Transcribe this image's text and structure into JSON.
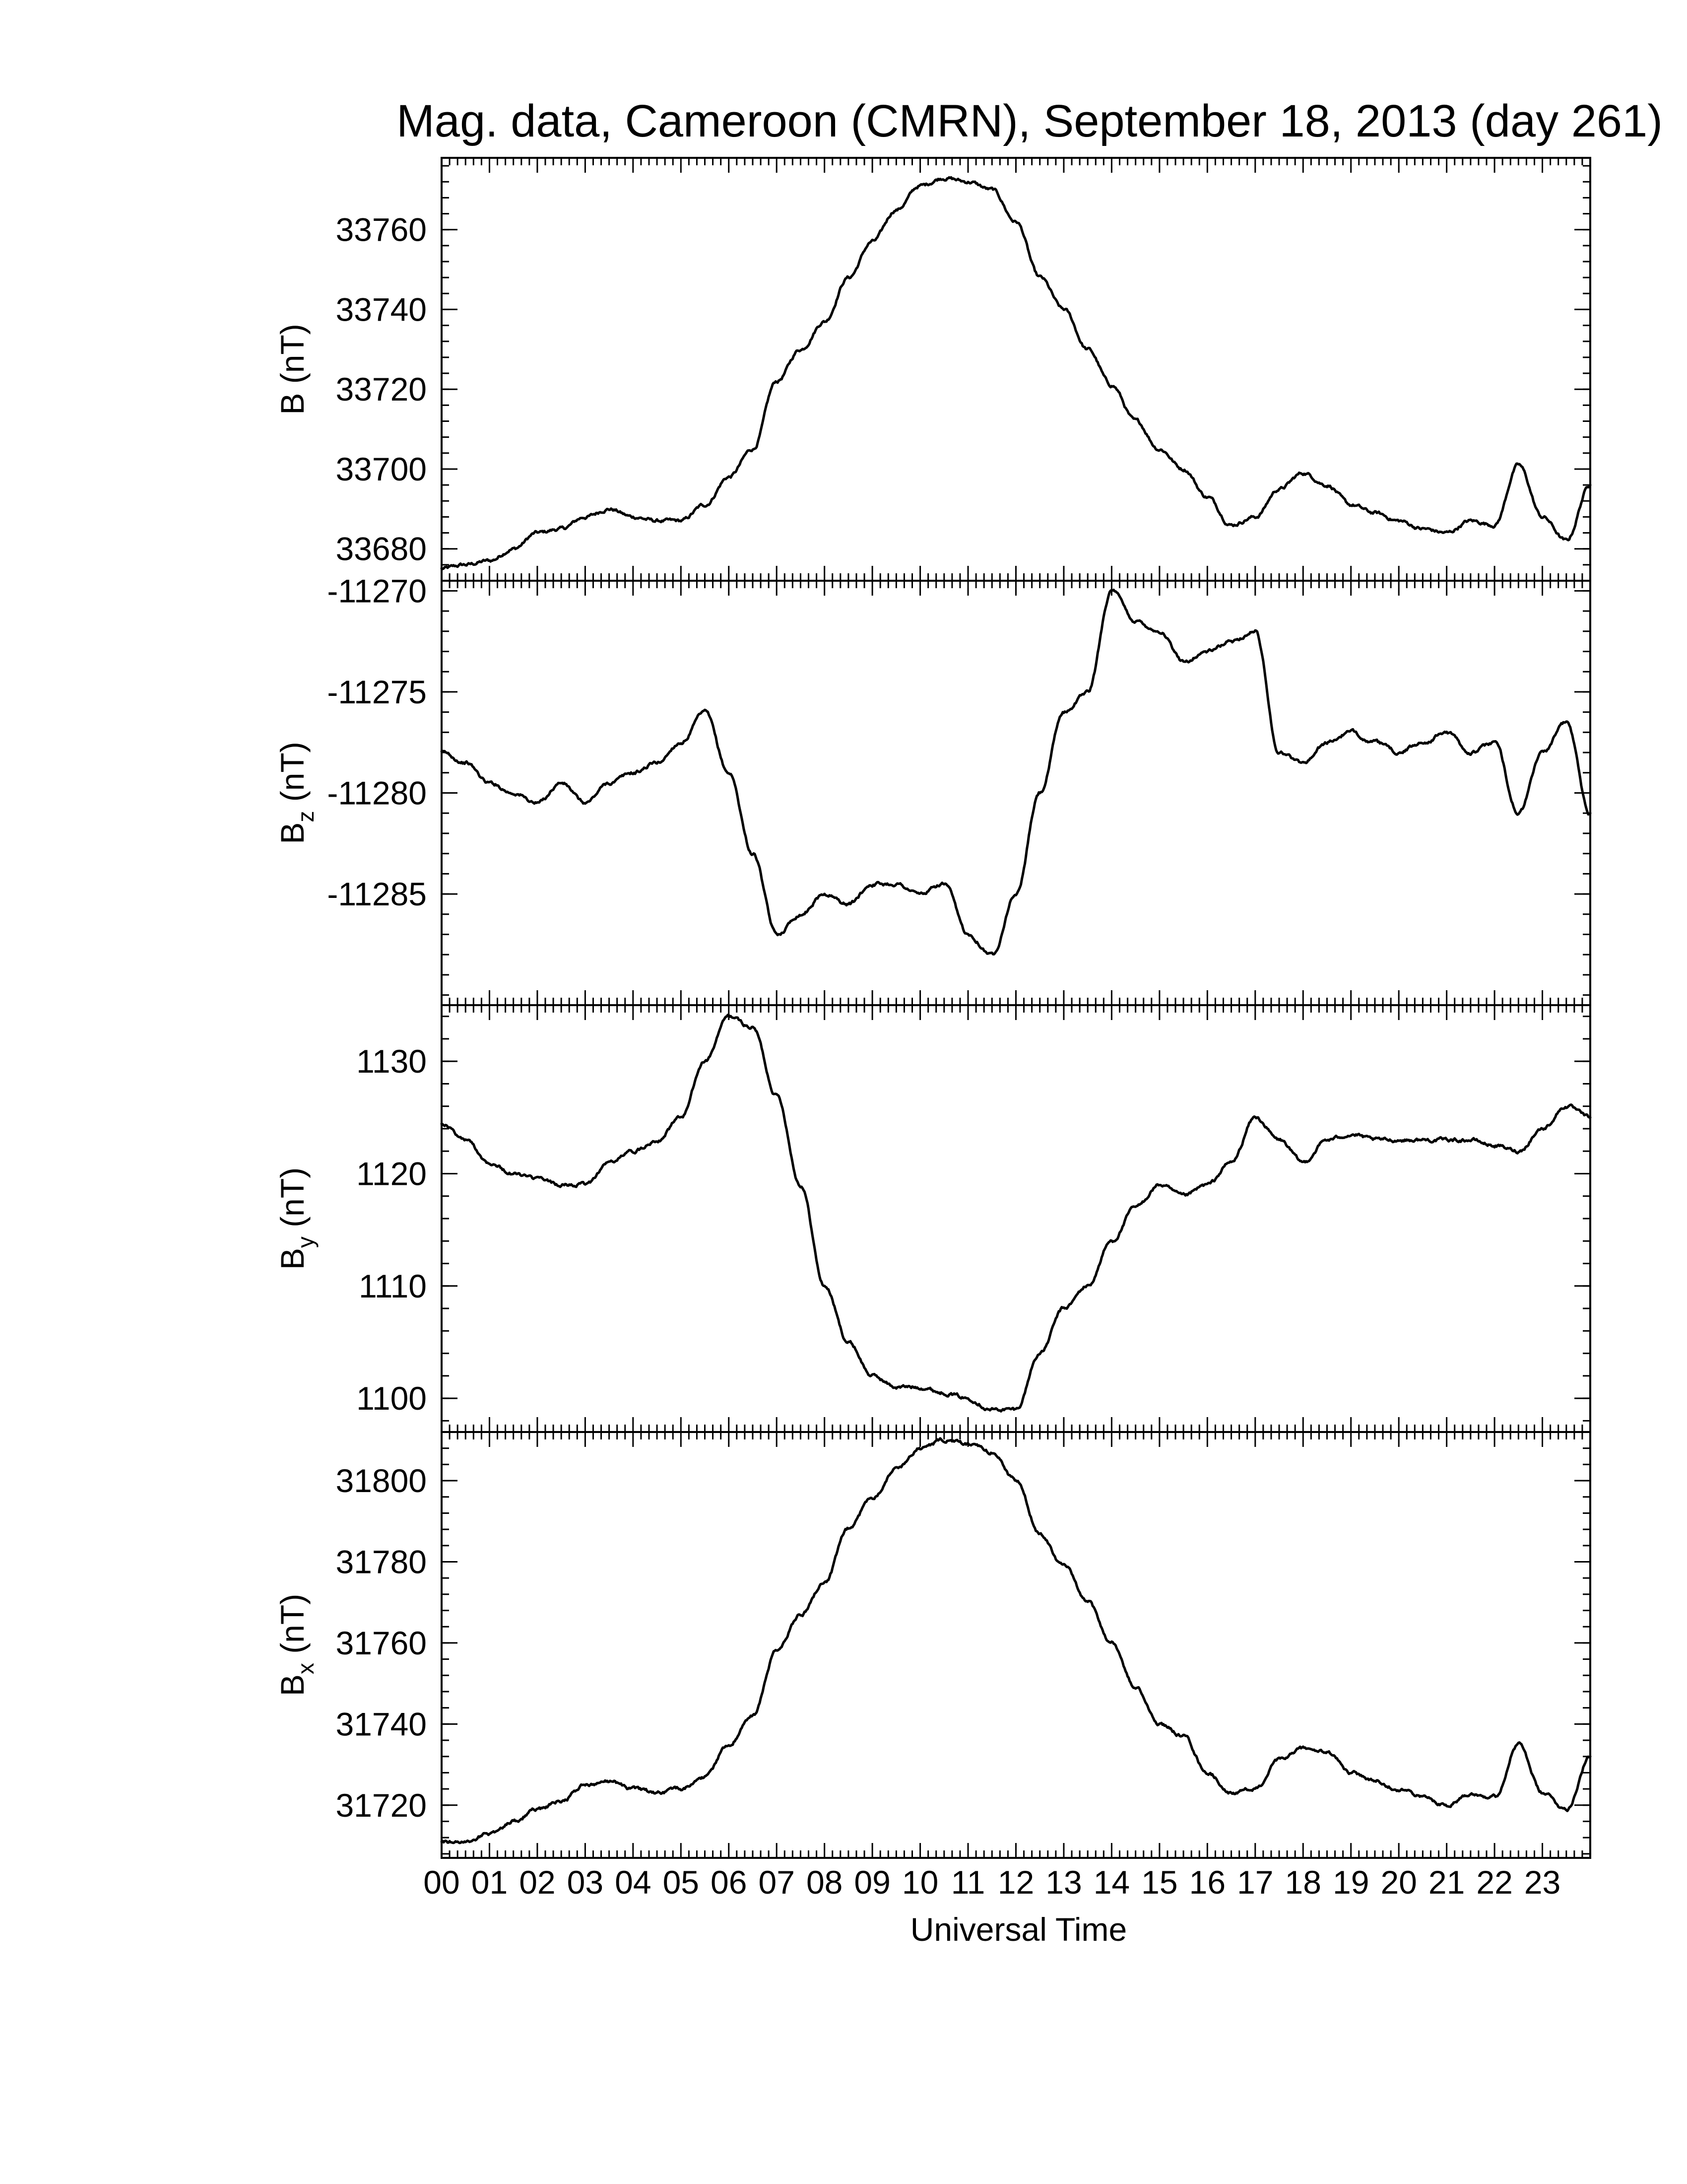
{
  "chart_data": {
    "type": "line",
    "title": "Mag. data, Cameroon (CMRN), September 18, 2013 (day 261)",
    "xlabel": "Universal Time",
    "xlim": [
      0,
      24
    ],
    "x_tick_labels": [
      "00",
      "01",
      "02",
      "03",
      "04",
      "05",
      "06",
      "07",
      "08",
      "09",
      "10",
      "11",
      "12",
      "13",
      "14",
      "15",
      "16",
      "17",
      "18",
      "19",
      "20",
      "21",
      "22",
      "23"
    ],
    "grid": false,
    "panels": [
      {
        "name": "B",
        "ylabel": "B (nT)",
        "ylabel_main": "B",
        "ylabel_sub": "",
        "ylabel_unit": " (nT)",
        "ylim": [
          33672,
          33778
        ],
        "yticks": [
          33680,
          33700,
          33720,
          33740,
          33760
        ],
        "ytick_labels": [
          "33680",
          "33700",
          "33720",
          "33740",
          "33760"
        ],
        "minor_step": 4,
        "x": [
          0,
          0.5,
          1,
          1.5,
          2,
          2.5,
          3,
          3.5,
          4,
          4.5,
          5,
          5.5,
          6,
          6.5,
          7,
          7.5,
          8,
          8.5,
          9,
          9.5,
          10,
          10.5,
          11,
          11.5,
          12,
          12.5,
          13,
          13.5,
          14,
          14.5,
          15,
          15.5,
          16,
          16.5,
          17,
          17.5,
          18,
          18.5,
          19,
          19.5,
          20,
          20.5,
          21,
          21.5,
          22,
          22.5,
          23,
          23.5,
          24
        ],
        "values": [
          33675,
          33676,
          33677,
          33680,
          33684,
          33685,
          33688,
          33690,
          33688,
          33687,
          33687,
          33691,
          33698,
          33705,
          33722,
          33730,
          33737,
          33748,
          33757,
          33765,
          33771,
          33773,
          33772,
          33770,
          33762,
          33748,
          33740,
          33730,
          33721,
          33712,
          33705,
          33700,
          33693,
          33686,
          33688,
          33695,
          33699,
          33696,
          33691,
          33689,
          33687,
          33685,
          33684,
          33687,
          33686,
          33701,
          33688,
          33682,
          33696
        ]
      },
      {
        "name": "Bz",
        "ylabel": "Bz (nT)",
        "ylabel_main": "B",
        "ylabel_sub": "z",
        "ylabel_unit": " (nT)",
        "ylim": [
          -11290.5,
          -11269.5
        ],
        "yticks": [
          -11270,
          -11275,
          -11280,
          -11285
        ],
        "ytick_labels": [
          "-11270",
          "-11275",
          "-11280",
          "-11285"
        ],
        "minor_step": 1,
        "x": [
          0,
          0.5,
          1,
          1.5,
          2,
          2.5,
          3,
          3.5,
          4,
          4.5,
          5,
          5.5,
          6,
          6.5,
          7,
          7.5,
          8,
          8.5,
          9,
          9.5,
          10,
          10.5,
          11,
          11.5,
          12,
          12.5,
          13,
          13.5,
          14,
          14.5,
          15,
          15.5,
          16,
          16.5,
          17,
          17.5,
          18,
          18.5,
          19,
          19.5,
          20,
          20.5,
          21,
          21.5,
          22,
          22.5,
          23,
          23.5,
          24
        ],
        "values": [
          -11278,
          -11278.5,
          -11279.5,
          -11280,
          -11280.5,
          -11279.5,
          -11280.5,
          -11279.5,
          -11279,
          -11278.5,
          -11277.5,
          -11276,
          -11279,
          -11283,
          -11287,
          -11286,
          -11285,
          -11285.5,
          -11284.5,
          -11284.5,
          -11285,
          -11284.5,
          -11287,
          -11288,
          -11285,
          -11280,
          -11276,
          -11275,
          -11270,
          -11271.5,
          -11272,
          -11273.5,
          -11273,
          -11272.5,
          -11272,
          -11278,
          -11278.5,
          -11277.5,
          -11277,
          -11277.5,
          -11278,
          -11277.5,
          -11277,
          -11278,
          -11277.5,
          -11281,
          -11278,
          -11276.5,
          -11281
        ]
      },
      {
        "name": "By",
        "ylabel": "By (nT)",
        "ylabel_main": "B",
        "ylabel_sub": "y",
        "ylabel_unit": " (nT)",
        "ylim": [
          1097,
          1135
        ],
        "yticks": [
          1100,
          1110,
          1120,
          1130
        ],
        "ytick_labels": [
          "1100",
          "1110",
          "1120",
          "1130"
        ],
        "minor_step": 2,
        "x": [
          0,
          0.5,
          1,
          1.5,
          2,
          2.5,
          3,
          3.5,
          4,
          4.5,
          5,
          5.5,
          6,
          6.5,
          7,
          7.5,
          8,
          8.5,
          9,
          9.5,
          10,
          10.5,
          11,
          11.5,
          12,
          12.5,
          13,
          13.5,
          14,
          14.5,
          15,
          15.5,
          16,
          16.5,
          17,
          17.5,
          18,
          18.5,
          19,
          19.5,
          20,
          20.5,
          21,
          21.5,
          22,
          22.5,
          23,
          23.5,
          24
        ],
        "values": [
          1124.5,
          1123,
          1121,
          1120,
          1119.5,
          1119,
          1119,
          1121,
          1122,
          1123,
          1125,
          1130,
          1134,
          1133,
          1127,
          1119,
          1110,
          1105,
          1102,
          1101,
          1101,
          1100.5,
          1100,
          1099,
          1099,
          1104,
          1108,
          1110,
          1114,
          1117,
          1119,
          1118,
          1119,
          1121,
          1125,
          1123,
          1121,
          1123,
          1123.5,
          1123,
          1123,
          1123,
          1123,
          1123,
          1122.5,
          1122,
          1124,
          1126,
          1125
        ]
      },
      {
        "name": "Bx",
        "ylabel": "Bx (nT)",
        "ylabel_main": "B",
        "ylabel_sub": "x",
        "ylabel_unit": " (nT)",
        "ylim": [
          31707,
          31812
        ],
        "yticks": [
          31720,
          31740,
          31760,
          31780,
          31800
        ],
        "ytick_labels": [
          "31720",
          "31740",
          "31760",
          "31780",
          "31800"
        ],
        "minor_step": 4,
        "x": [
          0,
          0.5,
          1,
          1.5,
          2,
          2.5,
          3,
          3.5,
          4,
          4.5,
          5,
          5.5,
          6,
          6.5,
          7,
          7.5,
          8,
          8.5,
          9,
          9.5,
          10,
          10.5,
          11,
          11.5,
          12,
          12.5,
          13,
          13.5,
          14,
          14.5,
          15,
          15.5,
          16,
          16.5,
          17,
          17.5,
          18,
          18.5,
          19,
          19.5,
          20,
          20.5,
          21,
          21.5,
          22,
          22.5,
          23,
          23.5,
          24
        ],
        "values": [
          31711,
          31711,
          31713,
          31716,
          31719,
          31721,
          31725,
          31726,
          31724,
          31723,
          31724,
          31727,
          31735,
          31742,
          31758,
          31767,
          31775,
          31788,
          31796,
          31803,
          31808,
          31810,
          31809,
          31807,
          31800,
          31787,
          31779,
          31770,
          31760,
          31749,
          31740,
          31737,
          31728,
          31723,
          31724,
          31731,
          31734,
          31733,
          31728,
          31726,
          31724,
          31722,
          31720,
          31723,
          31722,
          31735,
          31723,
          31719,
          31732
        ]
      }
    ]
  }
}
